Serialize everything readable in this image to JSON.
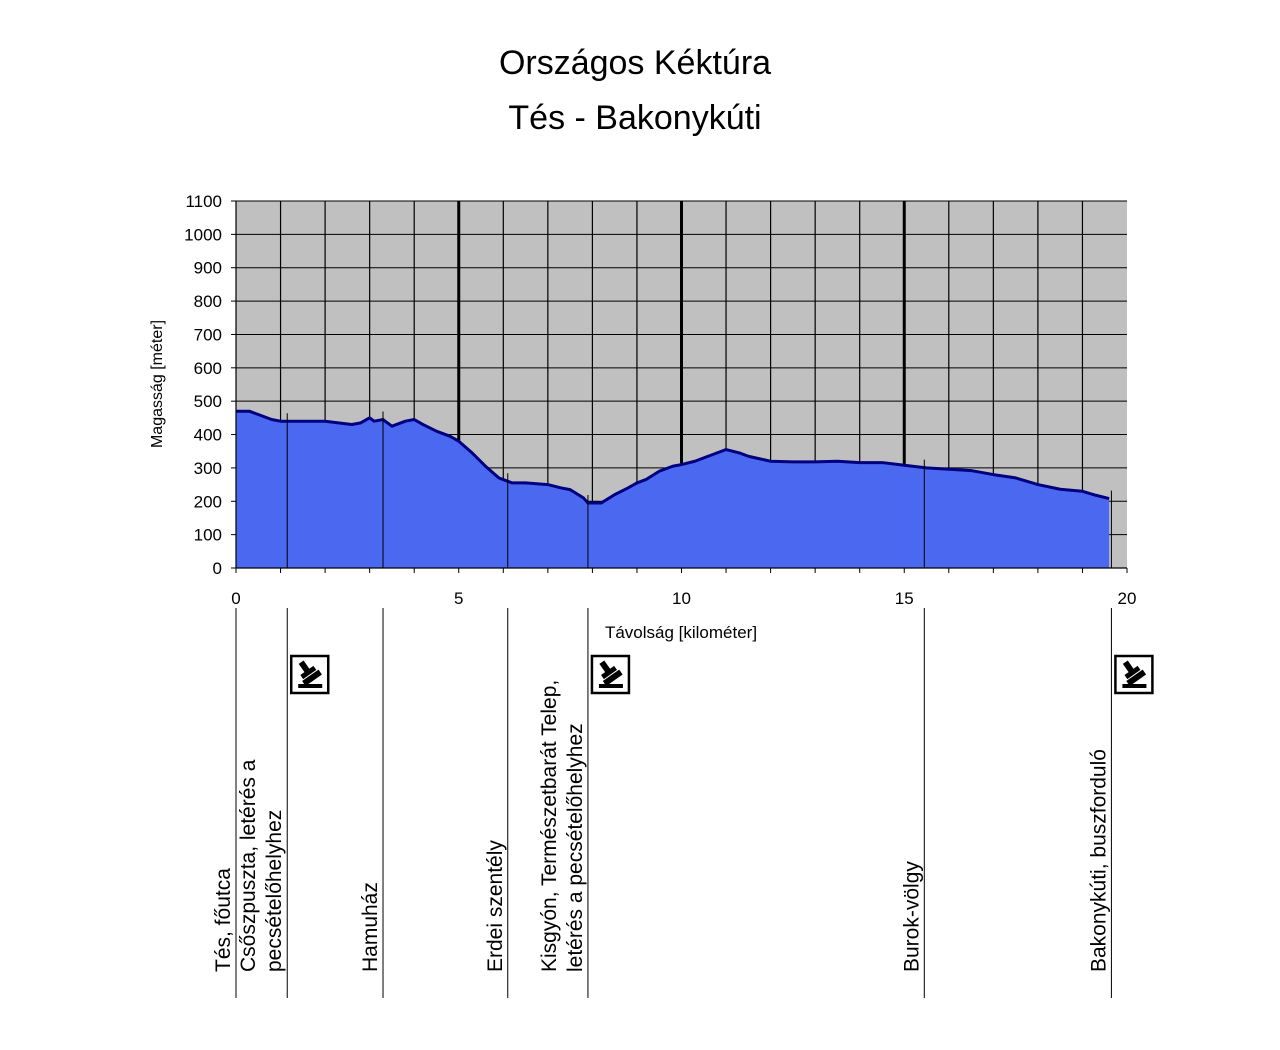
{
  "chart_data": {
    "type": "area",
    "title": "Országos Kéktúra",
    "subtitle": "Tés - Bakonykúti",
    "xlabel": "Távolság [kilométer]",
    "ylabel": "Magasság [méter]",
    "xlim": [
      0,
      20
    ],
    "ylim": [
      0,
      1100
    ],
    "x_ticks": [
      0,
      5,
      10,
      15,
      20
    ],
    "y_ticks": [
      0,
      100,
      200,
      300,
      400,
      500,
      600,
      700,
      800,
      900,
      1000,
      1100
    ],
    "grid": true,
    "legend": "none",
    "colors": {
      "fill": "#4a68f0",
      "line": "#000080",
      "plot_bg": "#c0c0c0"
    },
    "x": [
      0,
      0.3,
      0.5,
      0.8,
      1.0,
      1.5,
      2.0,
      2.3,
      2.6,
      2.8,
      3.0,
      3.1,
      3.3,
      3.5,
      3.8,
      4.0,
      4.2,
      4.5,
      4.8,
      5.0,
      5.3,
      5.6,
      5.9,
      6.2,
      6.5,
      7.0,
      7.3,
      7.5,
      7.8,
      7.9,
      8.2,
      8.5,
      8.8,
      9.0,
      9.2,
      9.5,
      9.8,
      10.0,
      10.3,
      10.5,
      10.8,
      11.0,
      11.3,
      11.5,
      12.0,
      12.5,
      13.0,
      13.5,
      14.0,
      14.5,
      15.0,
      15.5,
      16.0,
      16.5,
      17.0,
      17.5,
      18.0,
      18.5,
      19.0,
      19.3,
      19.6
    ],
    "y": [
      470,
      470,
      460,
      445,
      440,
      440,
      440,
      435,
      430,
      435,
      450,
      440,
      445,
      425,
      440,
      445,
      430,
      410,
      395,
      380,
      345,
      305,
      270,
      255,
      255,
      250,
      240,
      235,
      210,
      195,
      195,
      220,
      240,
      255,
      265,
      290,
      305,
      310,
      320,
      330,
      345,
      355,
      345,
      335,
      320,
      318,
      318,
      320,
      316,
      316,
      308,
      300,
      296,
      292,
      280,
      270,
      250,
      236,
      230,
      218,
      208
    ],
    "waypoints": [
      {
        "km": 0.0,
        "label": "Tés, főutca",
        "stamp": false
      },
      {
        "km": 1.15,
        "label": "Csőszpuszta, letérés a pecsételőhelyhez",
        "stamp": true
      },
      {
        "km": 3.3,
        "label": "Hamuház",
        "stamp": false
      },
      {
        "km": 6.1,
        "label": "Erdei szentély",
        "stamp": false
      },
      {
        "km": 7.9,
        "label": "Kisgyón, Természetbarát Telep, letérés a pecsételőhelyhez",
        "stamp": true
      },
      {
        "km": 15.45,
        "label": "Burok-völgy",
        "stamp": false
      },
      {
        "km": 19.65,
        "label": "Bakonykúti, buszforduló",
        "stamp": true
      }
    ]
  }
}
